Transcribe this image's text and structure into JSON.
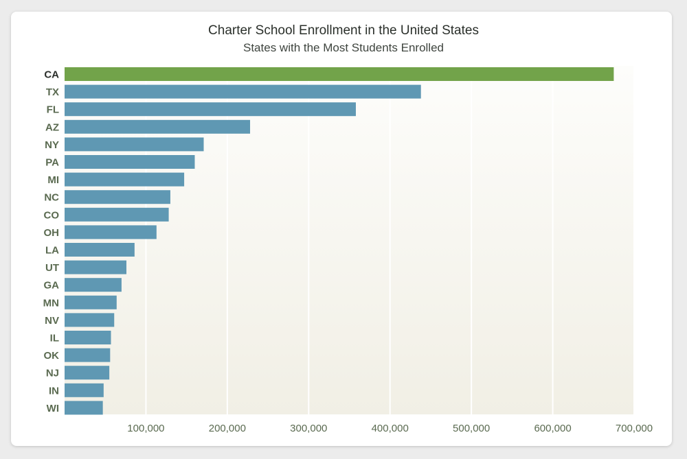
{
  "chart_data": {
    "type": "bar",
    "orientation": "horizontal",
    "title": "Charter School Enrollment in the United States",
    "subtitle": "States with the Most Students Enrolled",
    "categories": [
      "CA",
      "TX",
      "FL",
      "AZ",
      "NY",
      "PA",
      "MI",
      "NC",
      "CO",
      "OH",
      "LA",
      "UT",
      "GA",
      "MN",
      "NV",
      "IL",
      "OK",
      "NJ",
      "IN",
      "WI"
    ],
    "values": [
      675000,
      438000,
      358000,
      228000,
      171000,
      160000,
      147000,
      130000,
      128000,
      113000,
      86000,
      76000,
      70000,
      64000,
      61000,
      57000,
      56000,
      55000,
      48000,
      47000
    ],
    "xlim": [
      0,
      700000
    ],
    "x_ticks": [
      100000,
      200000,
      300000,
      400000,
      500000,
      600000,
      700000
    ],
    "x_tick_labels": [
      "100,000",
      "200,000",
      "300,000",
      "400,000",
      "500,000",
      "600,000",
      "700,000"
    ],
    "highlight_category": "CA",
    "colors": {
      "highlight": "#72a34a",
      "bar": "#5f98b3",
      "grid": "#ffffff",
      "plot_bg_top": "#fdfdfb",
      "plot_bg_bottom": "#f1efe5"
    },
    "grid": true,
    "legend": "none"
  }
}
